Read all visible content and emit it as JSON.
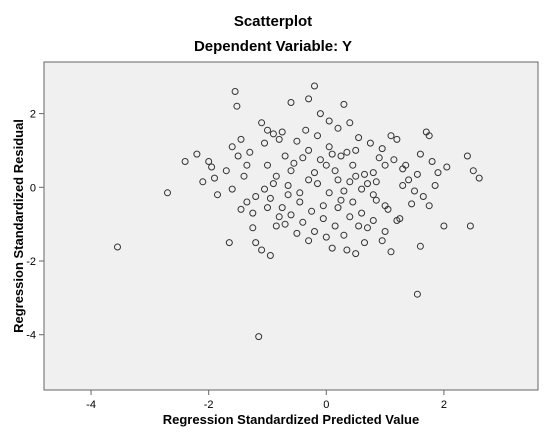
{
  "chart_data": {
    "type": "scatter",
    "title": "Scatterplot",
    "subtitle": "Dependent Variable: Y",
    "xlabel": "Regression Standardized Predicted Value",
    "ylabel": "Regression Standardized Residual",
    "xlim": [
      -4.8,
      3.6
    ],
    "ylim": [
      -5.5,
      3.4
    ],
    "xticks": [
      -4,
      -2,
      0,
      2
    ],
    "xtick_labels": [
      "-4",
      "-2",
      "0",
      "2"
    ],
    "yticks": [
      2,
      0,
      -2,
      -4
    ],
    "ytick_labels": [
      "2",
      "0",
      "-2",
      "-4"
    ],
    "grid": false,
    "colors": {
      "plot_background": "#f0f0f0",
      "marker_edge": "#333333"
    },
    "points": [
      [
        -3.55,
        -1.62
      ],
      [
        -2.7,
        -0.15
      ],
      [
        -2.4,
        0.7
      ],
      [
        -2.2,
        0.9
      ],
      [
        -2.0,
        0.7
      ],
      [
        -1.9,
        0.25
      ],
      [
        -1.85,
        -0.2
      ],
      [
        -1.7,
        0.45
      ],
      [
        -1.6,
        1.1
      ],
      [
        -1.55,
        2.6
      ],
      [
        -1.52,
        2.2
      ],
      [
        -1.5,
        0.85
      ],
      [
        -1.45,
        1.3
      ],
      [
        -1.4,
        0.3
      ],
      [
        -1.35,
        -0.4
      ],
      [
        -1.25,
        -1.1
      ],
      [
        -1.2,
        -1.5
      ],
      [
        -1.1,
        1.75
      ],
      [
        -1.05,
        1.2
      ],
      [
        -1.0,
        0.6
      ],
      [
        -0.9,
        0.1
      ],
      [
        -0.8,
        -0.8
      ],
      [
        -0.75,
        1.5
      ],
      [
        -1.15,
        -4.05
      ],
      [
        -1.65,
        -1.5
      ],
      [
        -1.45,
        -0.6
      ],
      [
        -1.25,
        -0.7
      ],
      [
        -1.1,
        -1.7
      ],
      [
        -0.95,
        -1.85
      ],
      [
        -0.85,
        -1.05
      ],
      [
        -0.6,
        2.3
      ],
      [
        -0.4,
        0.8
      ],
      [
        -0.2,
        2.75
      ],
      [
        -0.3,
        2.4
      ],
      [
        -0.1,
        2.0
      ],
      [
        0.05,
        1.8
      ],
      [
        0.2,
        1.6
      ],
      [
        0.3,
        2.25
      ],
      [
        0.4,
        1.75
      ],
      [
        0.5,
        1.0
      ],
      [
        0.1,
        0.9
      ],
      [
        0.0,
        0.6
      ],
      [
        -0.2,
        0.4
      ],
      [
        0.2,
        0.2
      ],
      [
        0.3,
        -0.1
      ],
      [
        0.45,
        -0.4
      ],
      [
        0.6,
        -0.7
      ],
      [
        0.7,
        -1.1
      ],
      [
        0.5,
        -1.8
      ],
      [
        0.35,
        -1.7
      ],
      [
        0.8,
        0.4
      ],
      [
        0.9,
        0.8
      ],
      [
        1.0,
        0.6
      ],
      [
        1.1,
        1.4
      ],
      [
        1.2,
        1.3
      ],
      [
        1.3,
        0.5
      ],
      [
        1.4,
        0.2
      ],
      [
        1.5,
        -0.1
      ],
      [
        1.6,
        0.9
      ],
      [
        1.7,
        1.5
      ],
      [
        1.75,
        1.4
      ],
      [
        1.8,
        0.7
      ],
      [
        1.9,
        0.4
      ],
      [
        2.0,
        -1.05
      ],
      [
        2.05,
        0.55
      ],
      [
        2.4,
        0.85
      ],
      [
        2.5,
        0.45
      ],
      [
        2.6,
        0.25
      ],
      [
        2.45,
        -1.05
      ],
      [
        1.55,
        -2.9
      ],
      [
        1.6,
        -1.6
      ],
      [
        1.2,
        -0.9
      ],
      [
        1.0,
        -0.5
      ],
      [
        0.8,
        -0.2
      ],
      [
        -1.05,
        -0.05
      ],
      [
        -0.95,
        -0.3
      ],
      [
        -0.75,
        -0.55
      ],
      [
        -0.6,
        -0.75
      ],
      [
        -0.4,
        -0.95
      ],
      [
        -0.2,
        -1.2
      ],
      [
        0.0,
        -1.35
      ],
      [
        -0.5,
        1.25
      ],
      [
        -0.3,
        1.0
      ],
      [
        -0.1,
        0.75
      ],
      [
        0.15,
        0.45
      ],
      [
        0.4,
        0.15
      ],
      [
        0.6,
        -0.05
      ],
      [
        0.85,
        -0.35
      ],
      [
        1.05,
        -0.6
      ],
      [
        1.25,
        -0.85
      ],
      [
        -1.3,
        0.95
      ],
      [
        -1.0,
        1.55
      ],
      [
        -0.9,
        1.45
      ],
      [
        -0.8,
        1.3
      ],
      [
        0.55,
        1.35
      ],
      [
        0.75,
        1.2
      ],
      [
        0.95,
        1.05
      ],
      [
        1.15,
        0.75
      ],
      [
        1.35,
        0.6
      ],
      [
        1.55,
        0.35
      ],
      [
        -0.65,
        -0.2
      ],
      [
        -0.45,
        -0.4
      ],
      [
        -0.25,
        -0.65
      ],
      [
        -0.05,
        -0.85
      ],
      [
        0.15,
        -1.05
      ],
      [
        0.3,
        -1.3
      ],
      [
        -0.85,
        0.3
      ],
      [
        -0.65,
        0.05
      ],
      [
        -0.45,
        -0.15
      ],
      [
        -0.15,
        1.4
      ],
      [
        0.05,
        1.1
      ],
      [
        0.25,
        0.85
      ],
      [
        0.45,
        0.6
      ],
      [
        0.65,
        0.35
      ],
      [
        0.85,
        0.15
      ],
      [
        -1.6,
        -0.05
      ],
      [
        -1.95,
        0.55
      ],
      [
        -0.7,
        0.85
      ],
      [
        -0.55,
        0.65
      ],
      [
        -0.35,
        1.55
      ],
      [
        1.45,
        -0.45
      ],
      [
        1.65,
        -0.25
      ],
      [
        1.85,
        0.05
      ],
      [
        0.95,
        -1.45
      ],
      [
        1.1,
        -1.75
      ],
      [
        -1.2,
        -0.25
      ],
      [
        -1.0,
        -0.55
      ],
      [
        -0.7,
        -1.0
      ],
      [
        -0.5,
        -1.25
      ],
      [
        -0.3,
        -1.45
      ],
      [
        0.65,
        -1.5
      ],
      [
        0.2,
        -0.55
      ],
      [
        0.4,
        -0.8
      ],
      [
        0.55,
        -1.05
      ],
      [
        -0.15,
        0.1
      ],
      [
        0.05,
        -0.15
      ],
      [
        0.25,
        -0.35
      ],
      [
        0.5,
        0.3
      ],
      [
        0.7,
        0.1
      ],
      [
        1.3,
        0.05
      ],
      [
        0.1,
        -1.65
      ],
      [
        -0.05,
        -0.5
      ],
      [
        1.75,
        -0.5
      ],
      [
        -1.35,
        0.6
      ],
      [
        -2.1,
        0.15
      ],
      [
        0.8,
        -0.9
      ],
      [
        1.0,
        -1.2
      ],
      [
        -0.3,
        0.2
      ],
      [
        -0.6,
        0.45
      ],
      [
        0.35,
        0.95
      ]
    ]
  }
}
